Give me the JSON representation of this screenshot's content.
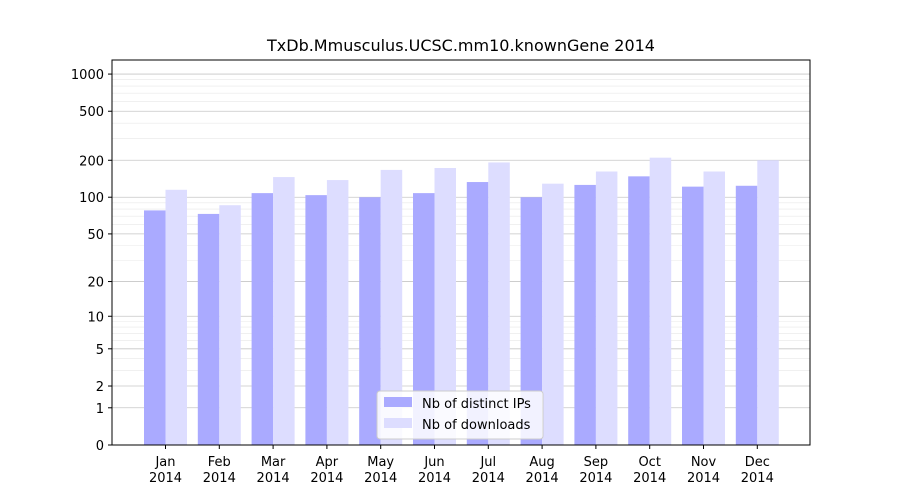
{
  "chart_data": {
    "type": "bar",
    "title": "TxDb.Mmusculus.UCSC.mm10.knownGene 2014",
    "xlabel": "",
    "ylabel": "",
    "yscale": "log(1+y)",
    "ylim": [
      0,
      1300
    ],
    "grid": true,
    "legend_position": "bottom-center",
    "categories": [
      {
        "month": "Jan",
        "year": "2014"
      },
      {
        "month": "Feb",
        "year": "2014"
      },
      {
        "month": "Mar",
        "year": "2014"
      },
      {
        "month": "Apr",
        "year": "2014"
      },
      {
        "month": "May",
        "year": "2014"
      },
      {
        "month": "Jun",
        "year": "2014"
      },
      {
        "month": "Jul",
        "year": "2014"
      },
      {
        "month": "Aug",
        "year": "2014"
      },
      {
        "month": "Sep",
        "year": "2014"
      },
      {
        "month": "Oct",
        "year": "2014"
      },
      {
        "month": "Nov",
        "year": "2014"
      },
      {
        "month": "Dec",
        "year": "2014"
      }
    ],
    "y_ticks": [
      {
        "value": 0,
        "label": "0"
      },
      {
        "value": 1,
        "label": "1"
      },
      {
        "value": 2,
        "label": "2"
      },
      {
        "value": 5,
        "label": "5"
      },
      {
        "value": 10,
        "label": "10"
      },
      {
        "value": 20,
        "label": "20"
      },
      {
        "value": 50,
        "label": "50"
      },
      {
        "value": 100,
        "label": "100"
      },
      {
        "value": 200,
        "label": "200"
      },
      {
        "value": 500,
        "label": "500"
      },
      {
        "value": 1000,
        "label": "1000"
      }
    ],
    "series": [
      {
        "name": "Nb of distinct IPs",
        "color": "#aaaaff",
        "values": [
          78,
          73,
          108,
          104,
          100,
          108,
          133,
          100,
          126,
          148,
          122,
          124
        ]
      },
      {
        "name": "Nb of downloads",
        "color": "#ddddff",
        "values": [
          115,
          86,
          146,
          138,
          167,
          173,
          192,
          129,
          162,
          210,
          162,
          200
        ]
      }
    ]
  }
}
